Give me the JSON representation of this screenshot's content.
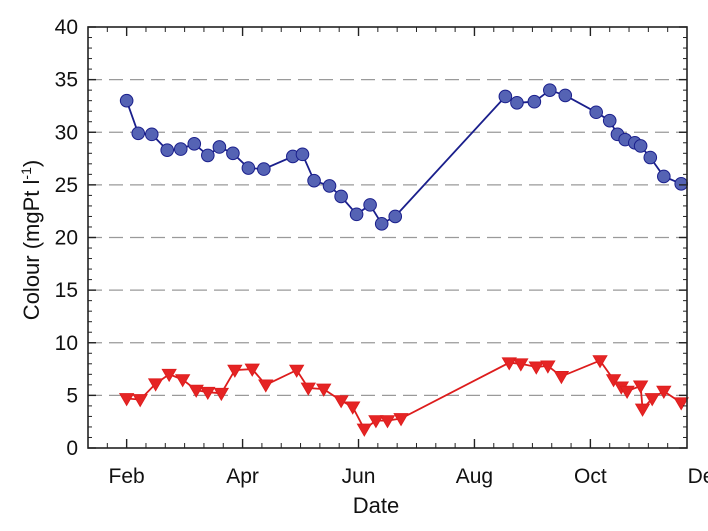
{
  "chart_data": {
    "type": "line",
    "xlabel": "Date",
    "ylabel": "Colour (mgPt l",
    "ylabel_superscript": "-1",
    "ylabel_suffix": ")",
    "xlim": [
      0,
      310
    ],
    "ylim": [
      0,
      40
    ],
    "grid": "horizontal dashed",
    "x_ticks": [
      {
        "value": 20,
        "label": "Feb"
      },
      {
        "value": 80,
        "label": "Apr"
      },
      {
        "value": 140,
        "label": "Jun"
      },
      {
        "value": 200,
        "label": "Aug"
      },
      {
        "value": 260,
        "label": "Oct"
      },
      {
        "value": 320,
        "label": "Dec"
      }
    ],
    "y_ticks": [
      {
        "value": 0,
        "label": "0"
      },
      {
        "value": 5,
        "label": "5"
      },
      {
        "value": 10,
        "label": "10"
      },
      {
        "value": 15,
        "label": "15"
      },
      {
        "value": 20,
        "label": "20"
      },
      {
        "value": 25,
        "label": "25"
      },
      {
        "value": 30,
        "label": "30"
      },
      {
        "value": 35,
        "label": "35"
      },
      {
        "value": 40,
        "label": "40"
      }
    ],
    "series": [
      {
        "marker": "circle",
        "color": "#1a1f8c",
        "marker_color": "#5563b4",
        "points": [
          [
            20,
            33.0
          ],
          [
            26,
            29.9
          ],
          [
            33,
            29.8
          ],
          [
            41,
            28.3
          ],
          [
            48,
            28.4
          ],
          [
            55,
            28.9
          ],
          [
            62,
            27.8
          ],
          [
            68,
            28.6
          ],
          [
            75,
            28.0
          ],
          [
            83,
            26.6
          ],
          [
            91,
            26.5
          ],
          [
            106,
            27.7
          ],
          [
            111,
            27.9
          ],
          [
            117,
            25.4
          ],
          [
            125,
            24.9
          ],
          [
            131,
            23.9
          ],
          [
            139,
            22.2
          ],
          [
            146,
            23.1
          ],
          [
            152,
            21.3
          ],
          [
            159,
            22.0
          ],
          [
            216,
            33.4
          ],
          [
            222,
            32.8
          ],
          [
            231,
            32.9
          ],
          [
            239,
            34.0
          ],
          [
            247,
            33.5
          ],
          [
            263,
            31.9
          ],
          [
            270,
            31.1
          ],
          [
            274,
            29.8
          ],
          [
            278,
            29.3
          ],
          [
            283,
            29.0
          ],
          [
            286,
            28.7
          ],
          [
            291,
            27.6
          ],
          [
            298,
            25.8
          ],
          [
            307,
            25.1
          ]
        ]
      },
      {
        "marker": "triangle-down",
        "color": "#dd1c1c",
        "marker_color": "#e52424",
        "points": [
          [
            20,
            4.7
          ],
          [
            27,
            4.6
          ],
          [
            35,
            6.1
          ],
          [
            42,
            7.0
          ],
          [
            49,
            6.5
          ],
          [
            56,
            5.5
          ],
          [
            62,
            5.3
          ],
          [
            69,
            5.2
          ],
          [
            76,
            7.4
          ],
          [
            85,
            7.5
          ],
          [
            92,
            6.0
          ],
          [
            108,
            7.4
          ],
          [
            114,
            5.7
          ],
          [
            122,
            5.6
          ],
          [
            131,
            4.5
          ],
          [
            137,
            3.9
          ],
          [
            143,
            1.8
          ],
          [
            149,
            2.6
          ],
          [
            155,
            2.6
          ],
          [
            162,
            2.8
          ],
          [
            218,
            8.1
          ],
          [
            224,
            8.0
          ],
          [
            232,
            7.7
          ],
          [
            238,
            7.8
          ],
          [
            245,
            6.8
          ],
          [
            265,
            8.3
          ],
          [
            272,
            6.5
          ],
          [
            276,
            5.8
          ],
          [
            279,
            5.4
          ],
          [
            286,
            5.9
          ],
          [
            287,
            3.7
          ],
          [
            292,
            4.7
          ],
          [
            298,
            5.4
          ],
          [
            307,
            4.3
          ]
        ]
      }
    ]
  }
}
